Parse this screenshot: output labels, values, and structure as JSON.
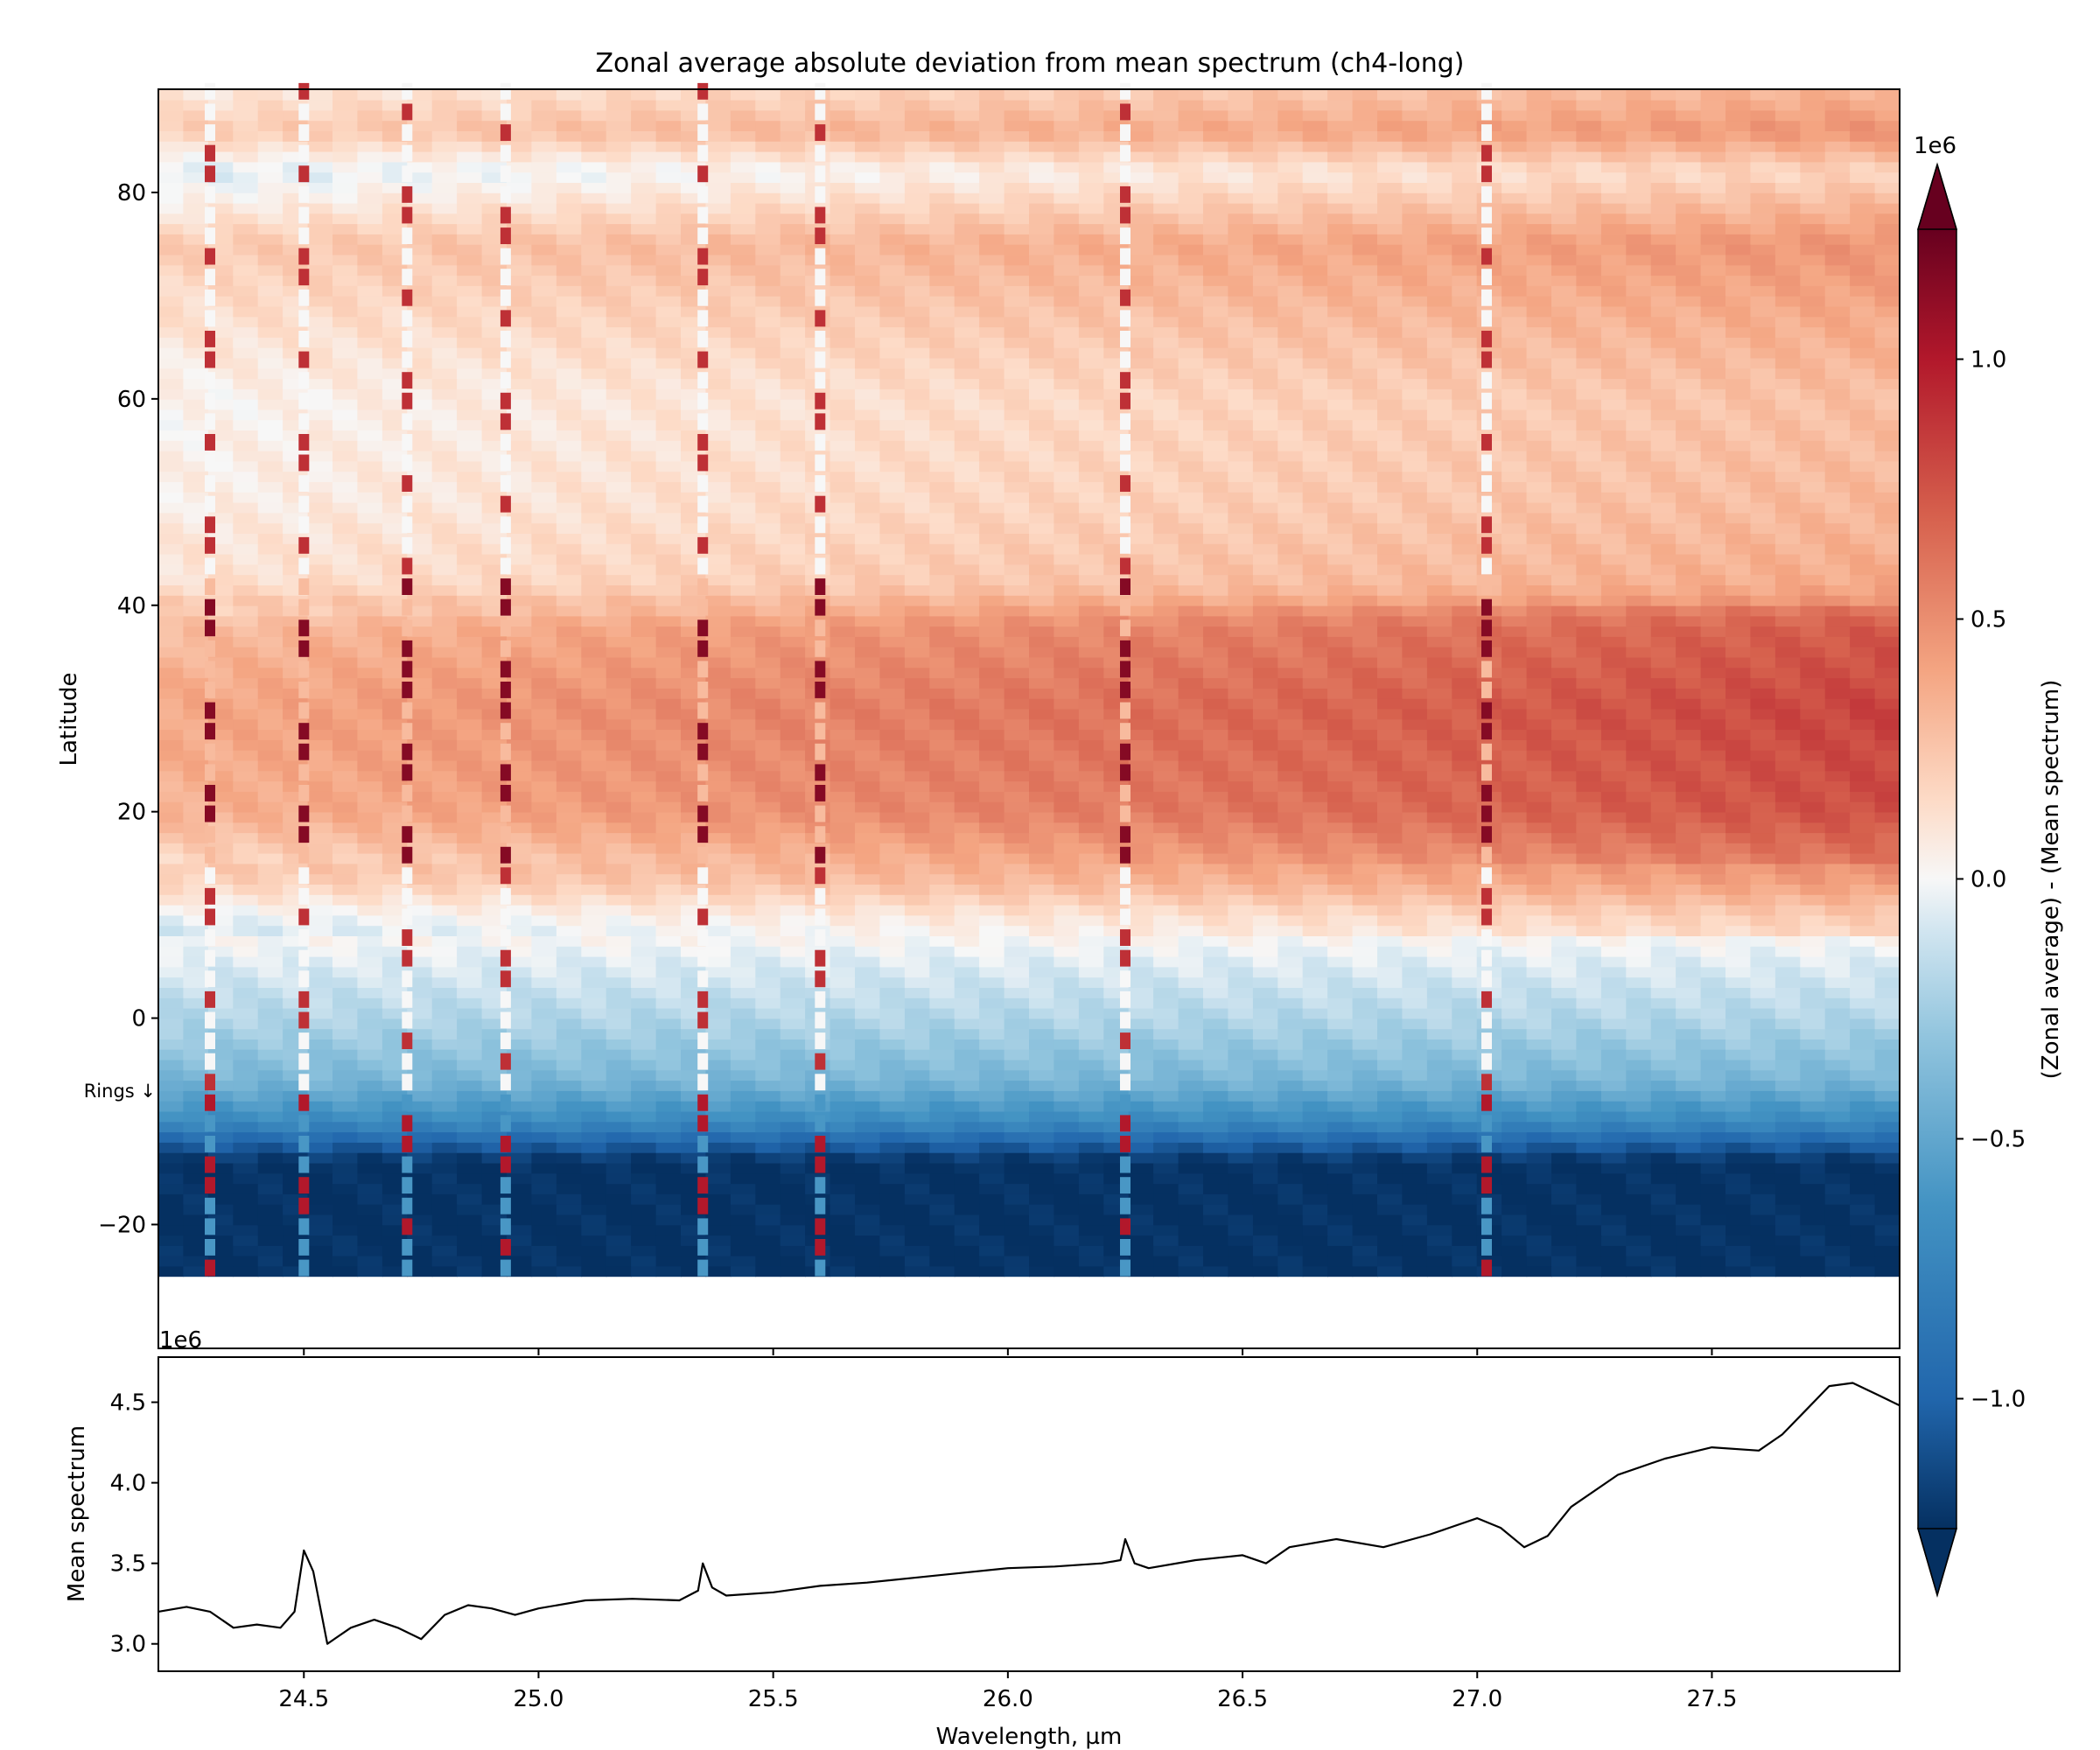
{
  "title": "Zonal average absolute deviation from mean spectrum (ch4-long)",
  "colors": {
    "neg_strong": "#053061",
    "neutral": "#f7f7f7",
    "pos_strong": "#67001f",
    "line": "#000000"
  },
  "chart_data": [
    {
      "type": "heatmap",
      "title": "Zonal average absolute deviation from mean spectrum (ch4-long)",
      "ylabel": "Latitude",
      "xlim": [
        24.19,
        27.9
      ],
      "ylim": [
        -32,
        90
      ],
      "yticks": [
        -20,
        0,
        20,
        40,
        60,
        80
      ],
      "data_lat_range": [
        -25,
        90
      ],
      "offset_label": "1e6",
      "annotation": "Rings ↓",
      "annotation_lat": -7,
      "colormap": "RdBu_r",
      "colorbar": {
        "label": "(Zonal average) - (Mean spectrum)",
        "offset_label": "1e6",
        "range": [
          -1.25,
          1.25
        ],
        "ticks": [
          -1.0,
          -0.5,
          0.0,
          0.5,
          1.0
        ],
        "tick_labels": [
          "−1.0",
          "−0.5",
          "0.0",
          "0.5",
          "1.0"
        ],
        "extend": "both"
      },
      "latitude_profile_1e6": [
        [
          -25,
          -1.25
        ],
        [
          -14,
          -1.25
        ],
        [
          -12,
          -1.0
        ],
        [
          -10,
          -0.7
        ],
        [
          -6,
          -0.4
        ],
        [
          0,
          -0.2
        ],
        [
          6,
          -0.05
        ],
        [
          10,
          0.1
        ],
        [
          13,
          0.3
        ],
        [
          20,
          0.55
        ],
        [
          30,
          0.6
        ],
        [
          38,
          0.5
        ],
        [
          42,
          0.25
        ],
        [
          50,
          0.18
        ],
        [
          60,
          0.15
        ],
        [
          68,
          0.25
        ],
        [
          75,
          0.35
        ],
        [
          82,
          0.05
        ],
        [
          86,
          0.35
        ],
        [
          90,
          0.2
        ]
      ],
      "anomaly_columns_um": [
        24.3,
        24.5,
        24.72,
        24.93,
        25.35,
        25.6,
        26.25,
        27.02
      ]
    },
    {
      "type": "line",
      "xlabel": "Wavelength, µm",
      "ylabel": "Mean spectrum",
      "offset_label": "1e6",
      "xlim": [
        24.19,
        27.9
      ],
      "ylim": [
        2.83,
        4.78
      ],
      "xticks": [
        24.5,
        25.0,
        25.5,
        26.0,
        26.5,
        27.0,
        27.5
      ],
      "xtick_labels": [
        "24.5",
        "25.0",
        "25.5",
        "26.0",
        "26.5",
        "27.0",
        "27.5"
      ],
      "yticks": [
        3.0,
        3.5,
        4.0,
        4.5
      ],
      "ytick_labels": [
        "3.0",
        "3.5",
        "4.0",
        "4.5"
      ],
      "series": [
        {
          "x": [
            24.19,
            24.25,
            24.3,
            24.35,
            24.4,
            24.45,
            24.48,
            24.5,
            24.52,
            24.55,
            24.6,
            24.65,
            24.7,
            24.75,
            24.8,
            24.85,
            24.9,
            24.95,
            25.0,
            25.1,
            25.2,
            25.3,
            25.34,
            25.35,
            25.37,
            25.4,
            25.5,
            25.6,
            25.7,
            25.8,
            25.9,
            26.0,
            26.1,
            26.2,
            26.24,
            26.25,
            26.27,
            26.3,
            26.4,
            26.5,
            26.55,
            26.6,
            26.7,
            26.8,
            26.9,
            27.0,
            27.05,
            27.1,
            27.15,
            27.2,
            27.3,
            27.4,
            27.5,
            27.6,
            27.65,
            27.7,
            27.75,
            27.8,
            27.85,
            27.9
          ],
          "y": [
            3.2,
            3.23,
            3.2,
            3.1,
            3.12,
            3.1,
            3.2,
            3.58,
            3.45,
            3.0,
            3.1,
            3.15,
            3.1,
            3.03,
            3.18,
            3.24,
            3.22,
            3.18,
            3.22,
            3.27,
            3.28,
            3.27,
            3.33,
            3.5,
            3.35,
            3.3,
            3.32,
            3.36,
            3.38,
            3.41,
            3.44,
            3.47,
            3.48,
            3.5,
            3.52,
            3.65,
            3.5,
            3.47,
            3.52,
            3.55,
            3.5,
            3.6,
            3.65,
            3.6,
            3.68,
            3.78,
            3.72,
            3.6,
            3.67,
            3.85,
            4.05,
            4.15,
            4.22,
            4.2,
            4.3,
            4.45,
            4.6,
            4.62,
            4.55,
            4.48
          ]
        }
      ]
    }
  ]
}
